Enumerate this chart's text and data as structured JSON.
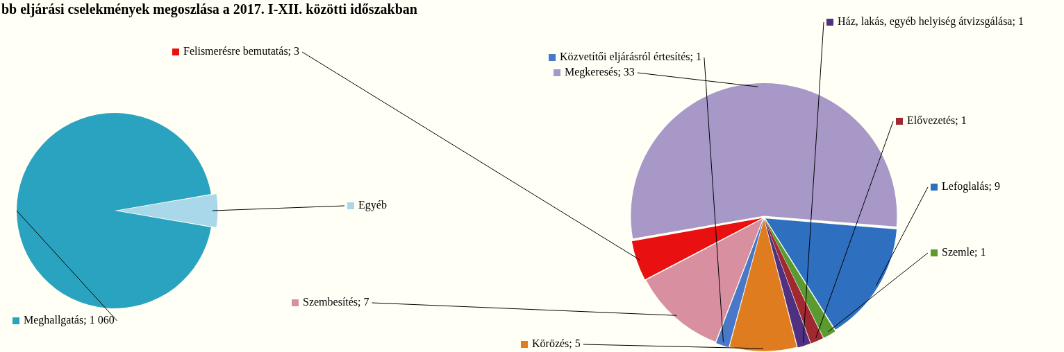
{
  "chart_data": [
    {
      "type": "pie",
      "title": "bb eljárási cselekmények megoszlása a 2017. I-XII. közötti időszakban",
      "categories": [
        "Meghallgatás",
        "Egyéb"
      ],
      "values": [
        1060,
        61
      ],
      "value_labels": [
        "1 060",
        null
      ],
      "colors": [
        "#2aa3c0",
        "#a8d8ea"
      ],
      "legend": "bottom"
    },
    {
      "type": "pie",
      "categories": [
        "Megkeresés",
        "Lefoglalás",
        "Szemle",
        "Elővezetés",
        "Ház, lakás, egyéb helyiség átvizsgálása",
        "Körözés",
        "Közvetítői eljárásról értesítés",
        "Szembesítés",
        "Felismerésre bemutatás"
      ],
      "values": [
        33,
        9,
        1,
        1,
        1,
        5,
        1,
        7,
        3
      ],
      "value_labels": [
        "33",
        "9",
        "1",
        "1",
        "1",
        "5",
        "1",
        "7",
        "3"
      ],
      "colors": [
        "#a898c8",
        "#2e6fc0",
        "#5a9a30",
        "#a02830",
        "#503080",
        "#e07c20",
        "#4a78c8",
        "#d890a0",
        "#e81010"
      ],
      "legend": "top left"
    }
  ]
}
